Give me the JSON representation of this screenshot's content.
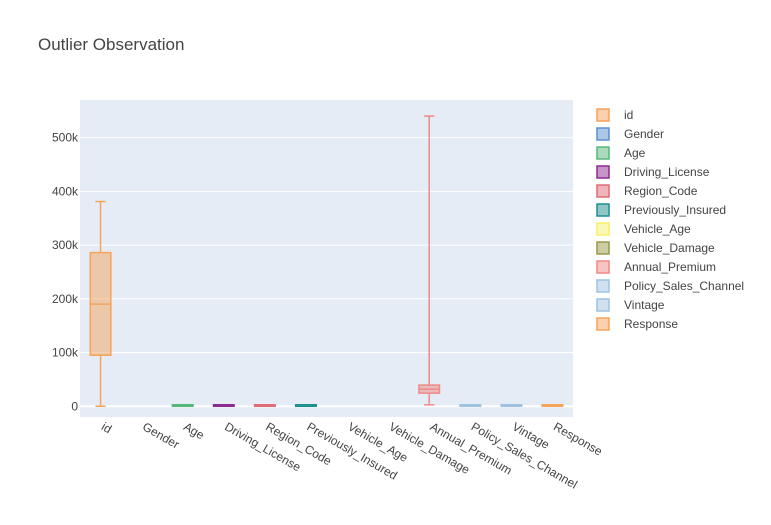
{
  "chart_data": {
    "type": "box",
    "title": "Outlier Observation",
    "xlabel": "",
    "ylabel": "",
    "ylim": [
      -20000,
      570000
    ],
    "y_ticks": [
      0,
      100000,
      200000,
      300000,
      400000,
      500000
    ],
    "y_tick_labels": [
      "0",
      "100k",
      "200k",
      "300k",
      "400k",
      "500k"
    ],
    "grid": true,
    "legend_position": "right",
    "categories": [
      "id",
      "Gender",
      "Age",
      "Driving_License",
      "Region_Code",
      "Previously_Insured",
      "Vehicle_Age",
      "Vehicle_Damage",
      "Annual_Premium",
      "Policy_Sales_Channel",
      "Vintage",
      "Response"
    ],
    "series": [
      {
        "name": "id",
        "color": "#f5a45a",
        "box": {
          "min": 1,
          "q1": 95000,
          "median": 190000,
          "q3": 286000,
          "max": 381000
        }
      },
      {
        "name": "Gender",
        "color": "#5b8fd0",
        "box": null
      },
      {
        "name": "Age",
        "color": "#55b87a",
        "box": {
          "min": 20,
          "q1": 25,
          "median": 36,
          "q3": 49,
          "max": 85
        }
      },
      {
        "name": "Driving_License",
        "color": "#8e2b93",
        "box": {
          "min": 0,
          "q1": 1,
          "median": 1,
          "q3": 1,
          "max": 1
        }
      },
      {
        "name": "Region_Code",
        "color": "#e06c75",
        "box": {
          "min": 0,
          "q1": 15,
          "median": 28,
          "q3": 35,
          "max": 52
        }
      },
      {
        "name": "Previously_Insured",
        "color": "#1f9090",
        "box": {
          "min": 0,
          "q1": 0,
          "median": 0,
          "q3": 1,
          "max": 1
        }
      },
      {
        "name": "Vehicle_Age",
        "color": "#f8f06a",
        "box": null
      },
      {
        "name": "Vehicle_Damage",
        "color": "#9a9a4a",
        "box": null
      },
      {
        "name": "Annual_Premium",
        "color": "#ef8a86",
        "box": {
          "min": 2630,
          "q1": 24400,
          "median": 31700,
          "q3": 39400,
          "max": 540000
        }
      },
      {
        "name": "Policy_Sales_Channel",
        "color": "#9fc2e0",
        "box": {
          "min": 1,
          "q1": 29,
          "median": 133,
          "q3": 152,
          "max": 163
        }
      },
      {
        "name": "Vintage",
        "color": "#9fc2e0",
        "box": {
          "min": 10,
          "q1": 82,
          "median": 154,
          "q3": 227,
          "max": 299
        }
      },
      {
        "name": "Response",
        "color": "#f5a45a",
        "box": {
          "min": 0,
          "q1": 0,
          "median": 0,
          "q3": 0,
          "max": 1
        }
      }
    ]
  }
}
